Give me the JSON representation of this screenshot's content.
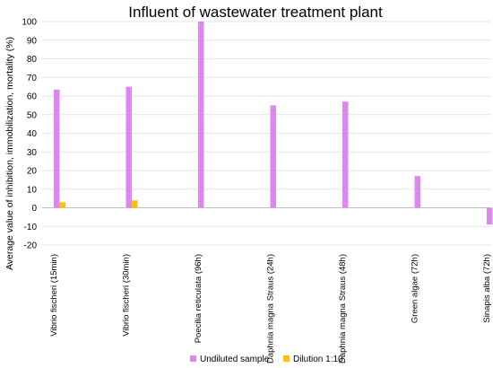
{
  "chart_data": {
    "type": "bar",
    "title": "Influent of wastewater treatment plant",
    "xlabel": "",
    "ylabel": "Average value of inhibition, immobilization, mortality (%)",
    "ylim": [
      -20,
      100
    ],
    "yticks": [
      -20,
      -10,
      0,
      10,
      20,
      30,
      40,
      50,
      60,
      70,
      80,
      90,
      100
    ],
    "grid": true,
    "legend_position": "bottom",
    "categories": [
      "Vibrio fischeri (15min)",
      "Vibrio fischeri (30min)",
      "Poecilia reticulata (96h)",
      "Daphnia magna Straus (24h)",
      "Daphnia magna Straus (48h)",
      "Green algae (72h)",
      "Sinapis alba (72h)"
    ],
    "series": [
      {
        "name": "Undiluted sample",
        "color": "#dd88ee",
        "values": [
          63.5,
          65,
          100,
          55,
          57,
          17,
          -9
        ]
      },
      {
        "name": "Dilution 1:10",
        "color": "#ffc000",
        "values": [
          3,
          4,
          null,
          null,
          null,
          null,
          null
        ]
      }
    ]
  }
}
